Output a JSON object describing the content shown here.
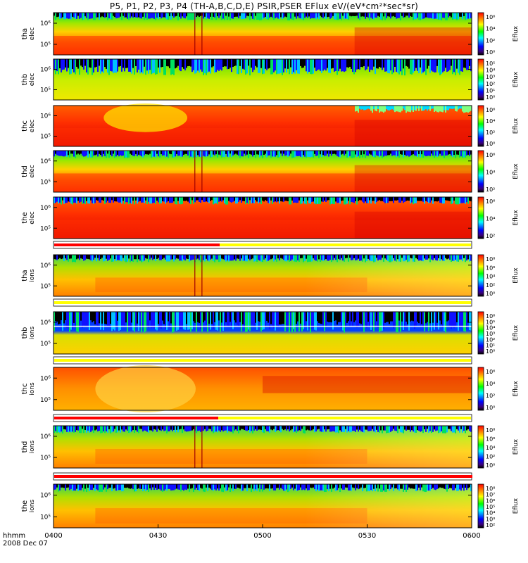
{
  "title": "P5, P1, P2, P3, P4 (TH-A,B,C,D,E) PSIR,PSER EFlux eV/(eV*cm²*sec*sr)",
  "chart_data": {
    "type": "heatmap",
    "x_ticks": [
      "0400",
      "0430",
      "0500",
      "0530",
      "0600"
    ],
    "time_range": [
      "2008-12-07 04:00",
      "2008-12-07 06:00"
    ],
    "x_axis_label": "hhmm",
    "date_label": "2008 Dec 07",
    "colorbar_label": "Eflux",
    "panels": [
      {
        "probe": "tha",
        "species": "elec",
        "ylabel": [
          "tha",
          "elec"
        ],
        "y_ticks": [
          "10⁶",
          "10⁵"
        ],
        "colorbar_ticks": [
          "10⁶",
          "10⁴",
          "10²",
          "10⁰"
        ]
      },
      {
        "probe": "thb",
        "species": "elec",
        "ylabel": [
          "thb",
          "elec"
        ],
        "y_ticks": [
          "10⁶",
          "10⁵"
        ],
        "colorbar_ticks": [
          "10⁵",
          "10⁴",
          "10³",
          "10²",
          "10¹",
          "10⁰"
        ]
      },
      {
        "probe": "thc",
        "species": "elec",
        "ylabel": [
          "thc",
          "elec"
        ],
        "y_ticks": [
          "10⁶",
          "10⁵"
        ],
        "colorbar_ticks": [
          "10⁶",
          "10⁴",
          "10²",
          "10⁰"
        ]
      },
      {
        "probe": "thd",
        "species": "elec",
        "ylabel": [
          "thd",
          "elec"
        ],
        "y_ticks": [
          "10⁶",
          "10⁵"
        ],
        "colorbar_ticks": [
          "10⁶",
          "10⁴",
          "10²"
        ]
      },
      {
        "probe": "the",
        "species": "elec",
        "ylabel": [
          "the",
          "elec"
        ],
        "y_ticks": [
          "10⁶",
          "10⁵"
        ],
        "colorbar_ticks": [
          "10⁶",
          "10⁴",
          "10²"
        ]
      },
      {
        "probe": "tha",
        "species": "ions",
        "ylabel": [
          "tha",
          "ions"
        ],
        "y_ticks": [
          "10⁶",
          "10⁵"
        ],
        "colorbar_ticks": [
          "10⁸",
          "10⁶",
          "10⁴",
          "10²",
          "10⁰"
        ]
      },
      {
        "probe": "thb",
        "species": "ions",
        "ylabel": [
          "thb",
          "ions"
        ],
        "y_ticks": [
          "10⁶",
          "10⁵"
        ],
        "colorbar_ticks": [
          "10⁶",
          "10⁵",
          "10⁴",
          "10³",
          "10²",
          "10¹",
          "10⁰"
        ]
      },
      {
        "probe": "thc",
        "species": "ions",
        "ylabel": [
          "thc",
          "ions"
        ],
        "y_ticks": [
          "10⁶",
          "10⁵"
        ],
        "colorbar_ticks": [
          "10⁶",
          "10⁴",
          "10²",
          "10⁰"
        ]
      },
      {
        "probe": "thd",
        "species": "ions",
        "ylabel": [
          "thd",
          "ions"
        ],
        "y_ticks": [
          "10⁶",
          "10⁵"
        ],
        "colorbar_ticks": [
          "10⁸",
          "10⁶",
          "10⁴",
          "10²",
          "10⁰"
        ]
      },
      {
        "probe": "the",
        "species": "ions",
        "ylabel": [
          "the",
          "ions"
        ],
        "y_ticks": [
          "10⁶",
          "10⁵"
        ],
        "colorbar_ticks": [
          "10⁸",
          "10⁷",
          "10⁶",
          "10⁵",
          "10⁴",
          "10³",
          "10²"
        ]
      }
    ]
  }
}
